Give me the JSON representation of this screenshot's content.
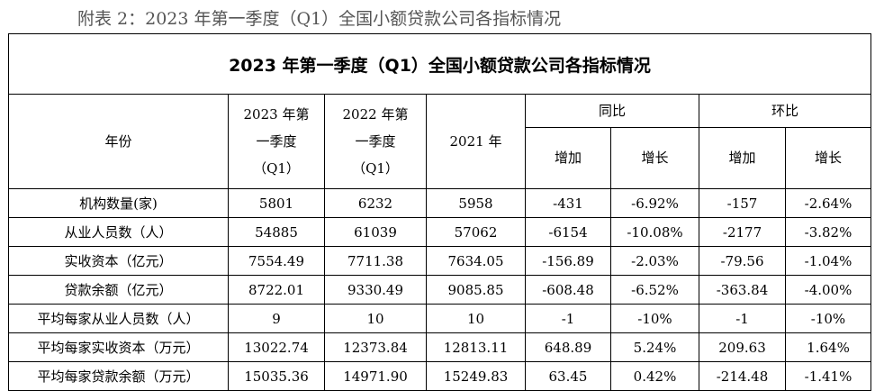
{
  "caption": "附表 2：2023 年第一季度（Q1）全国小额贷款公司各指标情况",
  "table": {
    "title": "2023 年第一季度（Q1）全国小额贷款公司各指标情况",
    "headers": {
      "year": "年份",
      "col2023": [
        "2023 年第",
        "一季度",
        "（Q1）"
      ],
      "col2022": [
        "2022 年第",
        "一季度",
        "（Q1）"
      ],
      "col2021": "2021 年",
      "yoy": "同比",
      "qoq": "环比",
      "increase": "增加",
      "growth": "增长"
    },
    "rows": [
      {
        "label": "机构数量(家)",
        "v2023": "5801",
        "v2022": "6232",
        "v2021": "5958",
        "yoy_inc": "-431",
        "yoy_growth": "-6.92%",
        "qoq_inc": "-157",
        "qoq_growth": "-2.64%"
      },
      {
        "label": "从业人员数（人）",
        "v2023": "54885",
        "v2022": "61039",
        "v2021": "57062",
        "yoy_inc": "-6154",
        "yoy_growth": "-10.08%",
        "qoq_inc": "-2177",
        "qoq_growth": "-3.82%"
      },
      {
        "label": "实收资本（亿元）",
        "v2023": "7554.49",
        "v2022": "7711.38",
        "v2021": "7634.05",
        "yoy_inc": "-156.89",
        "yoy_growth": "-2.03%",
        "qoq_inc": "-79.56",
        "qoq_growth": "-1.04%"
      },
      {
        "label": "贷款余额（亿元）",
        "v2023": "8722.01",
        "v2022": "9330.49",
        "v2021": "9085.85",
        "yoy_inc": "-608.48",
        "yoy_growth": "-6.52%",
        "qoq_inc": "-363.84",
        "qoq_growth": "-4.00%"
      },
      {
        "label": "平均每家从业人员数（人）",
        "v2023": "9",
        "v2022": "10",
        "v2021": "10",
        "yoy_inc": "-1",
        "yoy_growth": "-10%",
        "qoq_inc": "-1",
        "qoq_growth": "-10%"
      },
      {
        "label": "平均每家实收资本（万元）",
        "v2023": "13022.74",
        "v2022": "12373.84",
        "v2021": "12813.11",
        "yoy_inc": "648.89",
        "yoy_growth": "5.24%",
        "qoq_inc": "209.63",
        "qoq_growth": "1.64%"
      },
      {
        "label": "平均每家贷款余额（万元）",
        "v2023": "15035.36",
        "v2022": "14971.90",
        "v2021": "15249.83",
        "yoy_inc": "63.45",
        "yoy_growth": "0.42%",
        "qoq_inc": "-214.48",
        "qoq_growth": "-1.41%"
      }
    ]
  }
}
